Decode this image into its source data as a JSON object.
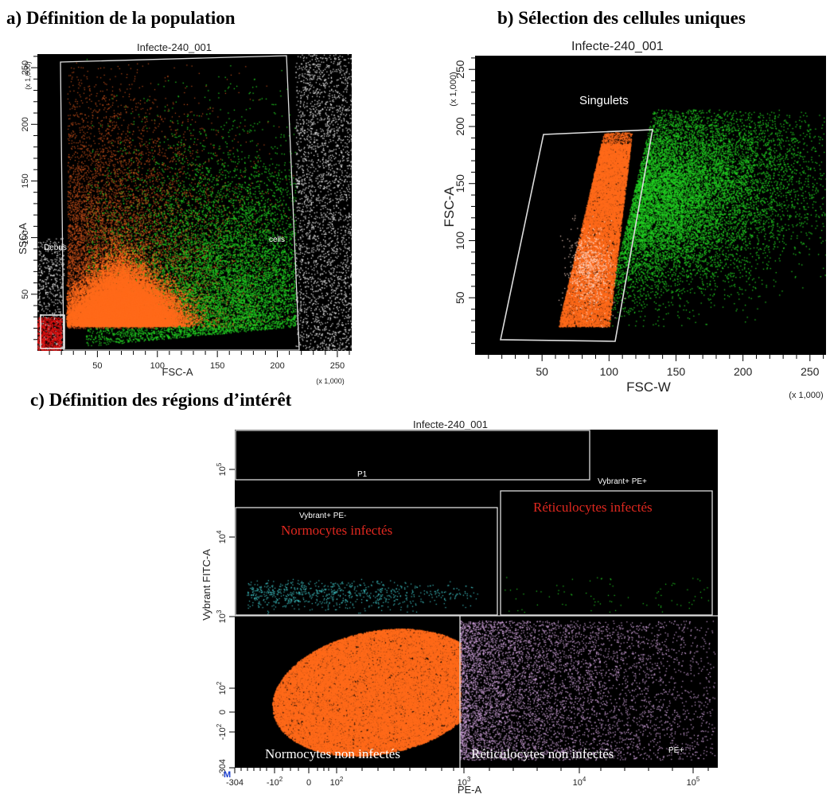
{
  "headings": {
    "a": "a)   Définition de la population",
    "b": "b)   Sélection des cellules uniques",
    "c": "c)   Définition des régions d’intérêt"
  },
  "panel_a": {
    "title": "Infecte-240_001",
    "xlabel": "FSC-A",
    "ylabel": "SSC-A",
    "x_multiplier": "(x 1,000)",
    "y_multiplier": "(x 1,000)",
    "gates": [
      "Debris",
      "cells"
    ]
  },
  "panel_b": {
    "title": "Infecte-240_001",
    "xlabel": "FSC-W",
    "ylabel": "FSC-A",
    "x_multiplier": "(x 1,000)",
    "y_multiplier": "(x 1,000)",
    "gates": [
      "Singulets"
    ]
  },
  "panel_c": {
    "title": "Infecte-240_001",
    "xlabel": "PE-A",
    "ylabel": "Vybrant FITC-A",
    "marker": "M",
    "gates": [
      "P1",
      "Vybrant+ PE+",
      "Vybrant+ PE-",
      "PE+"
    ],
    "regions": [
      "Normocytes infectés",
      "Réticulocytes infectés",
      "Normocytes non infectés",
      "Réticulocytes non infectés"
    ]
  },
  "colors": {
    "orange": "#ff6a1a",
    "green": "#22d322",
    "white": "#ffffff",
    "red": "#dd1111",
    "cyan": "#3fc7c9",
    "lavender": "#d9a9e6",
    "region_text_red": "#e0281f"
  },
  "chart_data": [
    {
      "type": "scatter",
      "title": "Infecte-240_001",
      "xlabel": "FSC-A",
      "ylabel": "SSC-A",
      "xlim": [
        0,
        262
      ],
      "ylim": [
        0,
        262
      ],
      "x_unit": "(x 1,000)",
      "y_unit": "(x 1,000)",
      "x_ticks": [
        50,
        100,
        150,
        200,
        250
      ],
      "y_ticks": [
        50,
        100,
        150,
        200,
        250
      ],
      "populations": [
        {
          "color": "orange",
          "center": [
            70,
            30
          ],
          "spread": [
            30,
            22
          ]
        },
        {
          "color": "green",
          "center": [
            150,
            90
          ],
          "spread": [
            45,
            50
          ]
        },
        {
          "color": "white",
          "note": "outside gates"
        },
        {
          "color": "red",
          "region": "debris corner"
        }
      ],
      "gates": [
        {
          "name": "Debris",
          "polygon": [
            [
              0,
              0
            ],
            [
              20,
              0
            ],
            [
              20,
              32
            ],
            [
              0,
              32
            ]
          ]
        },
        {
          "name": "cells",
          "polygon": [
            [
              22,
              0
            ],
            [
              24,
              257
            ],
            [
              210,
              262
            ],
            [
              217,
              0
            ]
          ]
        }
      ]
    },
    {
      "type": "scatter",
      "title": "Infecte-240_001",
      "xlabel": "FSC-W",
      "ylabel": "FSC-A",
      "xlim": [
        0,
        262
      ],
      "ylim": [
        0,
        262
      ],
      "x_unit": "(x 1,000)",
      "y_unit": "(x 1,000)",
      "x_ticks": [
        50,
        100,
        150,
        200,
        250
      ],
      "y_ticks": [
        50,
        100,
        150,
        200,
        250
      ],
      "populations": [
        {
          "color": "orange",
          "center": [
            85,
            80
          ],
          "spread": [
            18,
            45
          ]
        },
        {
          "color": "green",
          "center": [
            165,
            150
          ],
          "spread": [
            45,
            45
          ]
        }
      ],
      "gates": [
        {
          "name": "Singulets",
          "polygon": [
            [
              23,
              15
            ],
            [
              50,
              195
            ],
            [
              130,
              200
            ],
            [
              104,
              15
            ]
          ]
        }
      ]
    },
    {
      "type": "scatter",
      "title": "Infecte-240_001",
      "xlabel": "PE-A",
      "ylabel": "Vybrant FITC-A",
      "x_scale": "biexponential",
      "y_scale": "biexponential",
      "x_ticks": [
        "-304",
        "-10^2",
        "0",
        "10^2",
        "10^3",
        "10^4",
        "10^5"
      ],
      "y_ticks": [
        "-304",
        "-10^2",
        "0",
        "10^2",
        "10^3",
        "10^4",
        "10^5"
      ],
      "populations": [
        {
          "color": "orange",
          "label": "Normocytes non infectés"
        },
        {
          "color": "lavender",
          "label": "Réticulocytes non infectés"
        },
        {
          "color": "cyan",
          "label": "Normocytes infectés"
        },
        {
          "color": "green",
          "label": "Réticulocytes infectés"
        }
      ],
      "gates": [
        "P1",
        "Vybrant+ PE+",
        "Vybrant+ PE-",
        "PE+"
      ]
    }
  ]
}
